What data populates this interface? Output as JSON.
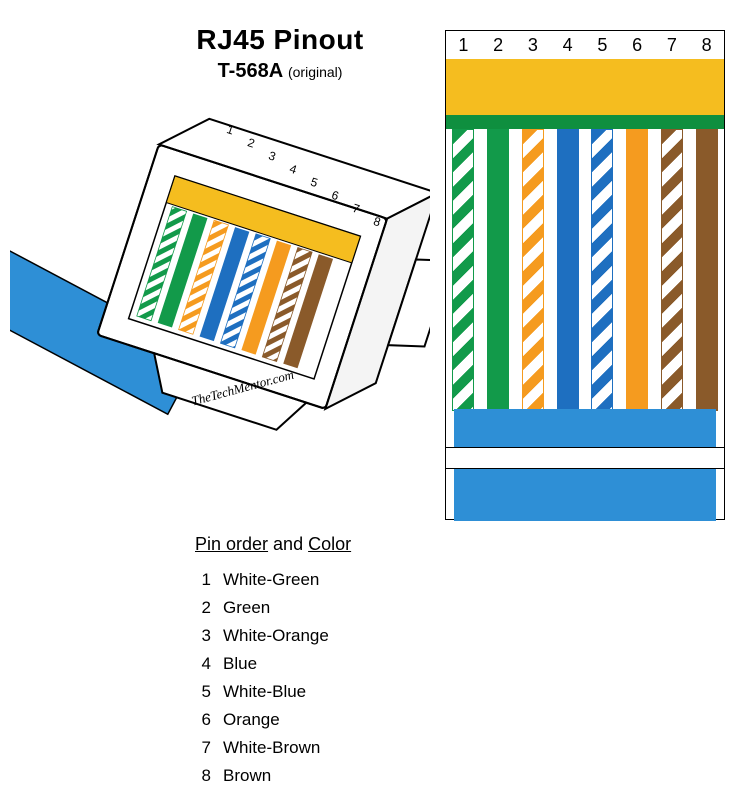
{
  "title": "RJ45  Pinout",
  "subtitle": "T-568A",
  "subtitle_note": "(original)",
  "watermark": "TheTechMentor.com",
  "colors": {
    "gold": "#f5bd1f",
    "green": "#129a4a",
    "orange": "#f59b1f",
    "blue": "#1e6fc0",
    "brown": "#8a5a2a",
    "white": "#ffffff",
    "cable_blue": "#2e8fd6",
    "clip_green": "#0f8f3f",
    "black": "#000000"
  },
  "pinout": {
    "numbers": [
      "1",
      "2",
      "3",
      "4",
      "5",
      "6",
      "7",
      "8"
    ],
    "wires": [
      {
        "type": "striped",
        "stripe": "#129a4a",
        "name": "White-Green"
      },
      {
        "type": "solid",
        "fill": "#129a4a",
        "name": "Green"
      },
      {
        "type": "striped",
        "stripe": "#f59b1f",
        "name": "White-Orange"
      },
      {
        "type": "solid",
        "fill": "#1e6fc0",
        "name": "Blue"
      },
      {
        "type": "striped",
        "stripe": "#1e6fc0",
        "name": "White-Blue"
      },
      {
        "type": "solid",
        "fill": "#f59b1f",
        "name": "Orange"
      },
      {
        "type": "striped",
        "stripe": "#8a5a2a",
        "name": "White-Brown"
      },
      {
        "type": "solid",
        "fill": "#8a5a2a",
        "name": "Brown"
      }
    ],
    "gold_color": "#f5bd1f",
    "clip_color": "#0f8f3f",
    "jacket_color": "#2e8fd6",
    "box_border": "#000000"
  },
  "pin_order": {
    "title_parts": [
      "Pin order",
      " and ",
      "Color"
    ],
    "rows": [
      {
        "n": "1",
        "label": "White-Green"
      },
      {
        "n": "2",
        "label": "Green"
      },
      {
        "n": "3",
        "label": "White-Orange"
      },
      {
        "n": "4",
        "label": "Blue"
      },
      {
        "n": "5",
        "label": "White-Blue"
      },
      {
        "n": "6",
        "label": "Orange"
      },
      {
        "n": "7",
        "label": "White-Brown"
      },
      {
        "n": "8",
        "label": "Brown"
      }
    ]
  },
  "connector": {
    "pin_labels": [
      "1",
      "2",
      "3",
      "4",
      "5",
      "6",
      "7",
      "8"
    ],
    "body_fill": "#ffffff",
    "body_stroke": "#000000",
    "cable_fill": "#2e8fd6",
    "gold": "#f5bd1f",
    "wire_colors": [
      {
        "type": "striped",
        "stripe": "#129a4a"
      },
      {
        "type": "solid",
        "fill": "#129a4a"
      },
      {
        "type": "striped",
        "stripe": "#f59b1f"
      },
      {
        "type": "solid",
        "fill": "#1e6fc0"
      },
      {
        "type": "striped",
        "stripe": "#1e6fc0"
      },
      {
        "type": "solid",
        "fill": "#f59b1f"
      },
      {
        "type": "striped",
        "stripe": "#8a5a2a"
      },
      {
        "type": "solid",
        "fill": "#8a5a2a"
      }
    ]
  }
}
